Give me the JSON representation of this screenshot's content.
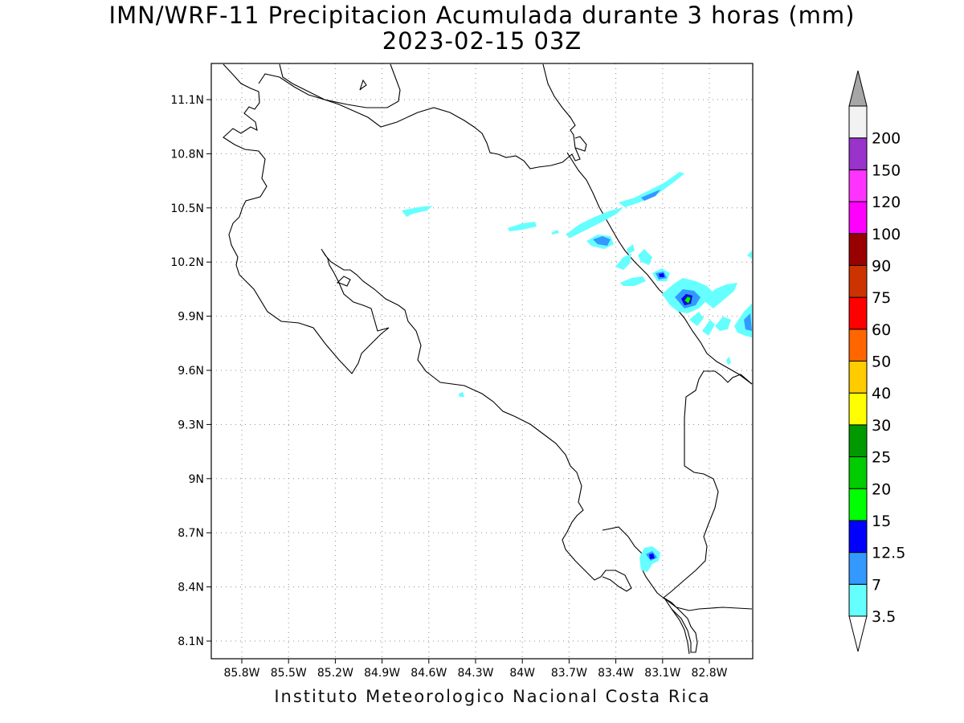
{
  "title_line1": "IMN/WRF-11 Precipitacion Acumulada durante 3 horas (mm)",
  "title_line2": "2023-02-15 03Z",
  "footer": "Instituto Meteorologico Nacional Costa Rica",
  "lat_labels": [
    "11.1N",
    "10.8N",
    "10.5N",
    "10.2N",
    "9.9N",
    "9.6N",
    "9.3N",
    "9N",
    "8.7N",
    "8.4N",
    "8.1N"
  ],
  "lon_labels": [
    "85.8W",
    "85.5W",
    "85.2W",
    "84.9W",
    "84.6W",
    "84.3W",
    "84W",
    "83.7W",
    "83.4W",
    "83.1W",
    "82.8W"
  ],
  "legend": {
    "levels": [
      "3.5",
      "7",
      "12.5",
      "15",
      "20",
      "25",
      "30",
      "40",
      "50",
      "60",
      "75",
      "90",
      "100",
      "120",
      "150",
      "200"
    ],
    "colors": [
      "#66ffff",
      "#3399ff",
      "#0000ff",
      "#00ff00",
      "#00cc00",
      "#009900",
      "#ffff00",
      "#ffcc00",
      "#ff6600",
      "#ff0000",
      "#cc3300",
      "#990000",
      "#ff00ff",
      "#ff33ff",
      "#9933cc",
      "#f2f2f2"
    ],
    "arrow_top_color": "#a6a6a6",
    "arrow_bottom_color": "#ffffff"
  },
  "map": {
    "lon_range": [
      "86W",
      "83W"
    ],
    "lat_range": [
      "8.0N",
      "11.3N"
    ],
    "grid": "dotted",
    "features": "coastline and borders of Costa Rica"
  }
}
